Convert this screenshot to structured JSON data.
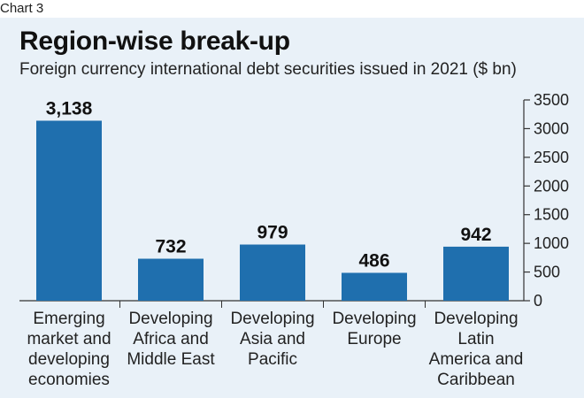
{
  "corner_label": "Chart 3",
  "chart_data": {
    "type": "bar",
    "title": "Region-wise break-up",
    "subtitle": "Foreign currency international debt securities issued in 2021 ($ bn)",
    "categories": [
      [
        "Emerging",
        "market and",
        "developing",
        "economies"
      ],
      [
        "Developing",
        "Africa and",
        "Middle East"
      ],
      [
        "Developing",
        "Asia and",
        "Pacific"
      ],
      [
        "Developing",
        "Europe"
      ],
      [
        "Developing",
        "Latin",
        "America and",
        "Caribbean"
      ]
    ],
    "values": [
      3138,
      732,
      979,
      486,
      942
    ],
    "value_labels": [
      "3,138",
      "732",
      "979",
      "486",
      "942"
    ],
    "ylim": [
      0,
      3500
    ],
    "yticks": [
      0,
      500,
      1000,
      1500,
      2000,
      2500,
      3000,
      3500
    ],
    "ytick_labels": [
      "0",
      "500",
      "1000",
      "1500",
      "2000",
      "2500",
      "3000",
      "3500"
    ],
    "y_axis_position": "right",
    "bar_color": "#1f6fae",
    "grid": false
  }
}
